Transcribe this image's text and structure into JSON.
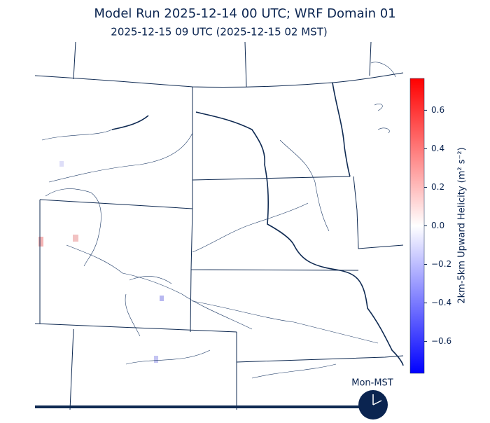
{
  "title": "Model Run 2025-12-14 00 UTC; WRF Domain 01",
  "subtitle": "2025-12-15 09 UTC  (2025-12-15 02 MST)",
  "colorbar": {
    "label": "2km-5km Upward Helicity (m² s⁻²)",
    "lim": [
      -0.765,
      0.765
    ],
    "colors": [
      "#0000ff",
      "#ffffff",
      "#ff0000"
    ],
    "ticks": [
      {
        "value": -0.6,
        "label": "−0.6"
      },
      {
        "value": -0.4,
        "label": "−0.4"
      },
      {
        "value": -0.2,
        "label": "−0.2"
      },
      {
        "value": 0,
        "label": "0.0"
      },
      0.2,
      0.4,
      0.6
    ]
  },
  "clock": {
    "label": "Mon-MST"
  }
}
